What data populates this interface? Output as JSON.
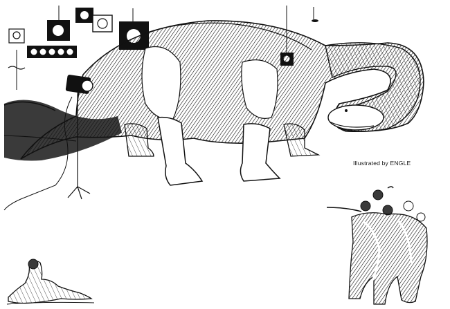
{
  "illustration": {
    "credit": "Illustrated by ENGLE",
    "colors": {
      "ink": "#111111",
      "paper": "#ffffff",
      "shade": "#3a3a3a"
    }
  }
}
